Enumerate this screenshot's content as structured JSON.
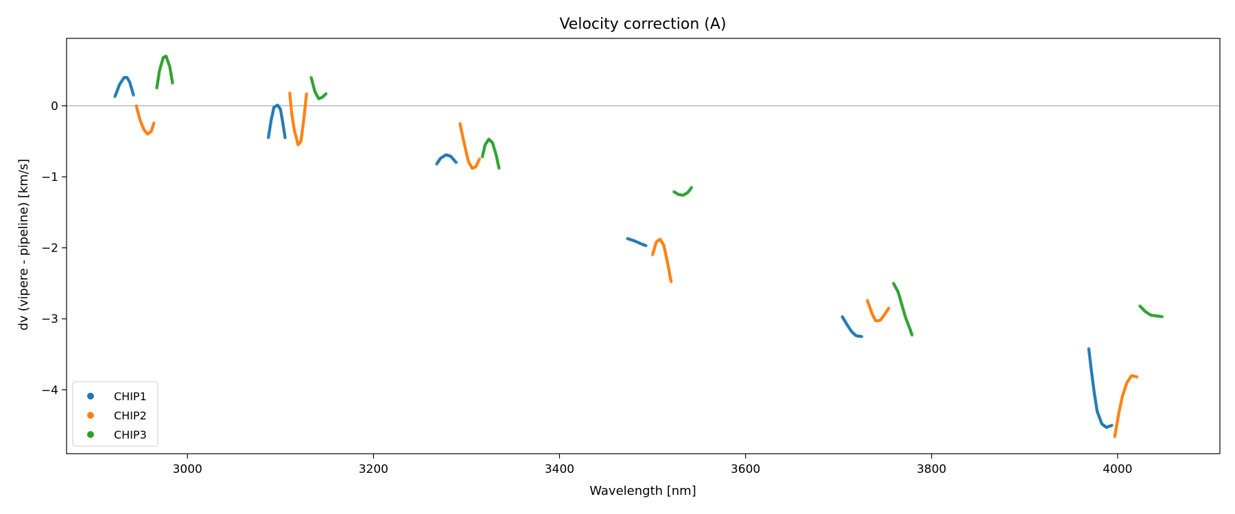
{
  "chart_data": {
    "type": "scatter",
    "title": "Velocity correction (A)",
    "xlabel": "Wavelength [nm]",
    "ylabel": "dv (vipere - pipeline) [km/s]",
    "xlim": [
      2870,
      4110
    ],
    "ylim": [
      -4.9,
      0.95
    ],
    "xticks": [
      3000,
      3200,
      3400,
      3600,
      3800,
      4000
    ],
    "yticks": [
      0,
      -1,
      -2,
      -3,
      -4
    ],
    "ytick_labels": [
      "0",
      "−1",
      "−2",
      "−3",
      "−4"
    ],
    "reference_line_y": 0,
    "legend_position": "lower-left",
    "colors": {
      "CHIP1": "#1f77b4",
      "CHIP2": "#ff7f0e",
      "CHIP3": "#2ca02c",
      "refline": "#999999"
    },
    "series": [
      {
        "name": "CHIP1",
        "segments": [
          [
            [
              2922,
              0.13
            ],
            [
              2927,
              0.3
            ],
            [
              2932,
              0.4
            ],
            [
              2935,
              0.4
            ],
            [
              2938,
              0.33
            ],
            [
              2942,
              0.15
            ]
          ],
          [
            [
              3087,
              -0.45
            ],
            [
              3090,
              -0.2
            ],
            [
              3093,
              -0.02
            ],
            [
              3097,
              0.01
            ],
            [
              3100,
              -0.05
            ],
            [
              3102,
              -0.2
            ],
            [
              3105,
              -0.45
            ]
          ],
          [
            [
              3268,
              -0.82
            ],
            [
              3272,
              -0.74
            ],
            [
              3278,
              -0.69
            ],
            [
              3283,
              -0.71
            ],
            [
              3289,
              -0.8
            ]
          ],
          [
            [
              3473,
              -1.87
            ],
            [
              3480,
              -1.9
            ],
            [
              3487,
              -1.94
            ],
            [
              3493,
              -1.97
            ]
          ],
          [
            [
              3704,
              -2.97
            ],
            [
              3709,
              -3.08
            ],
            [
              3714,
              -3.18
            ],
            [
              3719,
              -3.24
            ],
            [
              3725,
              -3.25
            ]
          ],
          [
            [
              3969,
              -3.42
            ],
            [
              3972,
              -3.75
            ],
            [
              3975,
              -4.05
            ],
            [
              3978,
              -4.3
            ],
            [
              3983,
              -4.48
            ],
            [
              3988,
              -4.53
            ],
            [
              3994,
              -4.5
            ]
          ]
        ]
      },
      {
        "name": "CHIP2",
        "segments": [
          [
            [
              2945,
              0.0
            ],
            [
              2949,
              -0.2
            ],
            [
              2953,
              -0.33
            ],
            [
              2957,
              -0.4
            ],
            [
              2961,
              -0.36
            ],
            [
              2964,
              -0.24
            ]
          ],
          [
            [
              3110,
              0.18
            ],
            [
              3112,
              -0.1
            ],
            [
              3115,
              -0.35
            ],
            [
              3119,
              -0.55
            ],
            [
              3122,
              -0.5
            ],
            [
              3125,
              -0.2
            ],
            [
              3128,
              0.17
            ]
          ],
          [
            [
              3293,
              -0.25
            ],
            [
              3297,
              -0.5
            ],
            [
              3302,
              -0.78
            ],
            [
              3306,
              -0.88
            ],
            [
              3310,
              -0.86
            ],
            [
              3314,
              -0.75
            ]
          ],
          [
            [
              3500,
              -2.1
            ],
            [
              3504,
              -1.92
            ],
            [
              3508,
              -1.88
            ],
            [
              3512,
              -1.96
            ],
            [
              3516,
              -2.2
            ],
            [
              3520,
              -2.48
            ]
          ],
          [
            [
              3731,
              -2.74
            ],
            [
              3736,
              -2.93
            ],
            [
              3740,
              -3.03
            ],
            [
              3745,
              -3.02
            ],
            [
              3750,
              -2.93
            ],
            [
              3754,
              -2.85
            ]
          ],
          [
            [
              3997,
              -4.66
            ],
            [
              4001,
              -4.35
            ],
            [
              4005,
              -4.1
            ],
            [
              4010,
              -3.9
            ],
            [
              4015,
              -3.8
            ],
            [
              4021,
              -3.82
            ]
          ]
        ]
      },
      {
        "name": "CHIP3",
        "segments": [
          [
            [
              2967,
              0.25
            ],
            [
              2970,
              0.5
            ],
            [
              2974,
              0.68
            ],
            [
              2977,
              0.7
            ],
            [
              2981,
              0.55
            ],
            [
              2984,
              0.32
            ]
          ],
          [
            [
              3133,
              0.4
            ],
            [
              3137,
              0.2
            ],
            [
              3141,
              0.1
            ],
            [
              3145,
              0.12
            ],
            [
              3149,
              0.17
            ]
          ],
          [
            [
              3317,
              -0.72
            ],
            [
              3320,
              -0.55
            ],
            [
              3324,
              -0.47
            ],
            [
              3328,
              -0.52
            ],
            [
              3332,
              -0.7
            ],
            [
              3335,
              -0.88
            ]
          ],
          [
            [
              3523,
              -1.21
            ],
            [
              3528,
              -1.25
            ],
            [
              3533,
              -1.26
            ],
            [
              3538,
              -1.22
            ],
            [
              3542,
              -1.15
            ]
          ],
          [
            [
              3759,
              -2.5
            ],
            [
              3764,
              -2.62
            ],
            [
              3768,
              -2.8
            ],
            [
              3772,
              -2.98
            ],
            [
              3777,
              -3.15
            ],
            [
              3779,
              -3.23
            ]
          ],
          [
            [
              4024,
              -2.82
            ],
            [
              4030,
              -2.9
            ],
            [
              4036,
              -2.95
            ],
            [
              4042,
              -2.96
            ],
            [
              4048,
              -2.97
            ]
          ]
        ]
      }
    ]
  }
}
